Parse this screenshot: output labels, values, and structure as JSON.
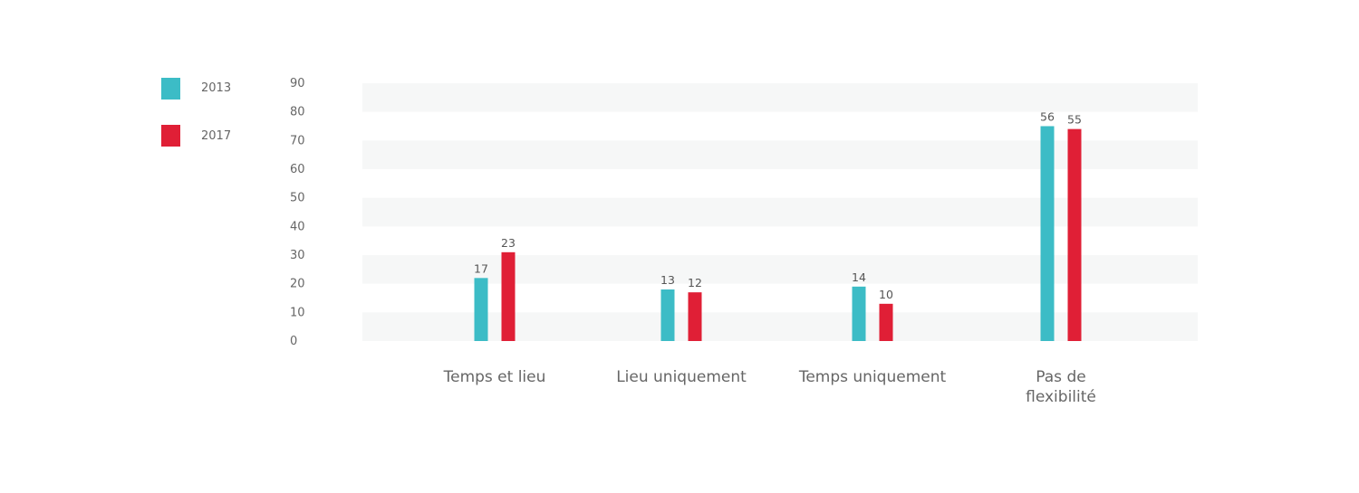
{
  "chart_data": {
    "type": "bar",
    "categories": [
      "Temps et lieu",
      "Lieu uniquement",
      "Temps uniquement",
      "Pas de flexibilité"
    ],
    "category_label_lines": [
      [
        "Temps et lieu"
      ],
      [
        "Lieu uniquement"
      ],
      [
        "Temps uniquement"
      ],
      [
        "Pas de",
        "flexibilité"
      ]
    ],
    "series": [
      {
        "name": "2013",
        "color": "#3cbcc6",
        "values": [
          17,
          13,
          14,
          56
        ]
      },
      {
        "name": "2017",
        "color": "#e01f36",
        "values": [
          23,
          12,
          10,
          55
        ]
      }
    ],
    "bar_heights": [
      [
        22,
        18,
        19,
        75
      ],
      [
        31,
        17,
        13,
        74
      ]
    ],
    "yticks": [
      "0",
      "10",
      "20",
      "30",
      "40",
      "50",
      "60",
      "70",
      "80",
      "90"
    ],
    "ylim": [
      0,
      90
    ],
    "grid": true,
    "legend_position": "left",
    "title": "",
    "xlabel": "",
    "ylabel": ""
  }
}
